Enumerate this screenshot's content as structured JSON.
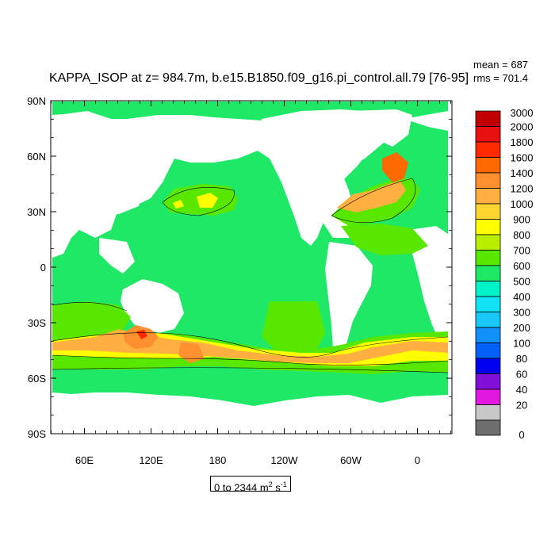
{
  "chart_data": {
    "type": "heatmap",
    "title": "KAPPA_ISOP at z= 984.7m, b.e15.B1850.f09_g16.pi_control.all.79 [76-95]",
    "stats": {
      "mean": "mean = 687",
      "rms": "rms = 701.4"
    },
    "lat_ticks": [
      "90N",
      "60N",
      "30N",
      "0",
      "30S",
      "60S",
      "90S"
    ],
    "lon_ticks": [
      "60E",
      "120E",
      "180",
      "120W",
      "60W",
      "0"
    ],
    "colorbar": {
      "levels": [
        "3000",
        "2000",
        "1800",
        "1600",
        "1400",
        "1200",
        "1000",
        "900",
        "800",
        "700",
        "600",
        "500",
        "400",
        "300",
        "200",
        "100",
        "80",
        "60",
        "40",
        "20",
        "0"
      ],
      "colors": [
        "#c00000",
        "#e81010",
        "#ff2a00",
        "#ff6a00",
        "#ff9030",
        "#ffb040",
        "#ffd530",
        "#ffff00",
        "#b8f000",
        "#58e800",
        "#1ee866",
        "#00f4c8",
        "#10e4f4",
        "#18c8f8",
        "#1090f8",
        "#0060f8",
        "#0000f0",
        "#8010d8",
        "#e018e0",
        "#c8c8c8",
        "#6e6e6e"
      ]
    },
    "range": {
      "prefix": "0 to 2344 m",
      "exp1": "2",
      "mid": " s",
      "exp2": "-1"
    }
  }
}
